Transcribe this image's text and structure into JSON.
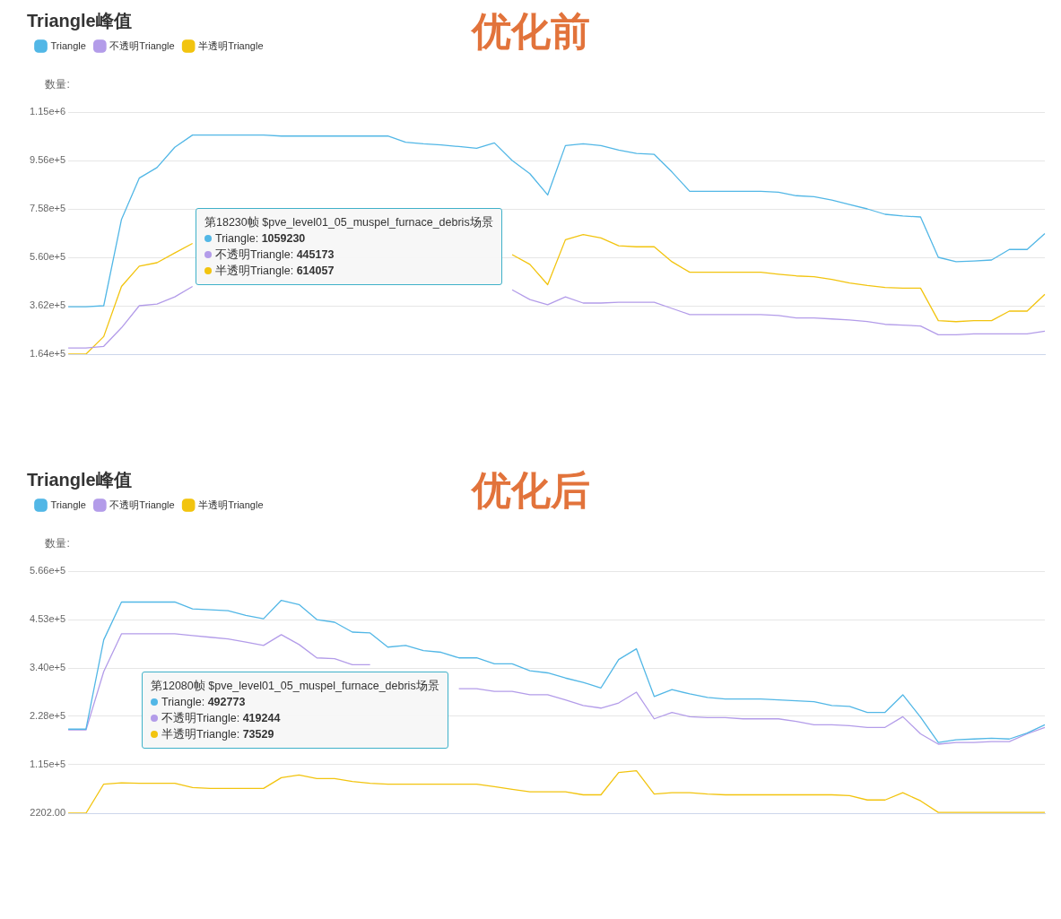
{
  "chart_data": [
    {
      "type": "line",
      "title": "Triangle峰值",
      "subtitle": "优化前",
      "ylabel": "数量:",
      "legend": "top left",
      "grid": "y",
      "marker": "none",
      "tick_labels": "y",
      "categories": [
        null,
        null,
        null,
        null,
        null,
        null,
        null,
        null,
        null,
        null,
        null,
        null,
        null,
        null,
        null,
        null,
        null,
        null,
        null,
        null,
        null,
        null,
        null,
        null,
        null,
        null,
        null,
        null,
        null,
        null,
        null,
        null,
        null,
        null,
        null,
        null,
        null,
        null,
        null,
        null,
        null,
        null,
        null,
        null,
        null,
        null,
        null,
        null,
        null,
        null,
        null,
        null,
        null,
        null,
        null,
        null
      ],
      "ylim": [
        164000,
        1154000
      ],
      "yticks": [
        {
          "value": 164000,
          "label": "1.64e+5"
        },
        {
          "value": 362000,
          "label": "3.62e+5"
        },
        {
          "value": 560000,
          "label": "5.60e+5"
        },
        {
          "value": 758000,
          "label": "7.58e+5"
        },
        {
          "value": 956000,
          "label": "9.56e+5"
        },
        {
          "value": 1154000,
          "label": "1.15e+6"
        }
      ],
      "series": [
        {
          "name": "Triangle",
          "color": "#52b7e6",
          "values": [
            358000,
            358000,
            362000,
            715000,
            884000,
            927000,
            1010000,
            1060000,
            1060000,
            1060000,
            1060000,
            1060000,
            1056000,
            1056000,
            1056000,
            1056000,
            1056000,
            1056000,
            1056000,
            1031000,
            1024000,
            1020000,
            1013000,
            1006000,
            1028000,
            956000,
            902000,
            815000,
            1017000,
            1024000,
            1017000,
            999000,
            985000,
            981000,
            909000,
            830000,
            830000,
            830000,
            830000,
            830000,
            826000,
            812000,
            808000,
            794000,
            776000,
            758000,
            736000,
            729000,
            725000,
            560000,
            542000,
            545000,
            549000,
            592000,
            592000,
            657000
          ]
        },
        {
          "name": "不透明Triangle",
          "color": "#b39ce9",
          "values": [
            189000,
            189000,
            196000,
            272000,
            362000,
            369000,
            398000,
            441000,
            null,
            null,
            null,
            null,
            null,
            null,
            null,
            null,
            null,
            null,
            null,
            null,
            null,
            null,
            null,
            null,
            null,
            427000,
            387000,
            366000,
            398000,
            373000,
            373000,
            376000,
            376000,
            376000,
            351000,
            326000,
            326000,
            326000,
            326000,
            326000,
            322000,
            312000,
            312000,
            308000,
            304000,
            297000,
            286000,
            283000,
            279000,
            243000,
            243000,
            247000,
            247000,
            247000,
            247000,
            258000
          ]
        },
        {
          "name": "半透明Triangle",
          "color": "#f2c40f",
          "values": [
            164000,
            164000,
            236000,
            441000,
            524000,
            538000,
            578000,
            617000,
            null,
            null,
            null,
            null,
            null,
            null,
            null,
            null,
            null,
            null,
            null,
            null,
            null,
            null,
            null,
            null,
            null,
            571000,
            531000,
            448000,
            632000,
            653000,
            639000,
            607000,
            603000,
            603000,
            542000,
            499000,
            499000,
            499000,
            499000,
            499000,
            491000,
            484000,
            481000,
            470000,
            455000,
            445000,
            437000,
            434000,
            434000,
            301000,
            297000,
            301000,
            301000,
            340000,
            340000,
            409000
          ]
        }
      ],
      "annotations": [
        "第18230帧 $pve_level01_05_muspel_furnace_debris场景",
        "Triangle: 1059230",
        "不透明Triangle: 445173",
        "半透明Triangle: 614057"
      ]
    },
    {
      "type": "line",
      "title": "Triangle峰值",
      "subtitle": "优化后",
      "ylabel": "数量:",
      "legend": "top left",
      "grid": "y",
      "marker": "none",
      "tick_labels": "y",
      "categories": [
        null,
        null,
        null,
        null,
        null,
        null,
        null,
        null,
        null,
        null,
        null,
        null,
        null,
        null,
        null,
        null,
        null,
        null,
        null,
        null,
        null,
        null,
        null,
        null,
        null,
        null,
        null,
        null,
        null,
        null,
        null,
        null,
        null,
        null,
        null,
        null,
        null,
        null,
        null,
        null,
        null,
        null,
        null,
        null,
        null,
        null,
        null,
        null,
        null,
        null,
        null,
        null,
        null,
        null,
        null,
        null
      ],
      "ylim": [
        2202,
        566000
      ],
      "yticks": [
        {
          "value": 2202,
          "label": "2202.00"
        },
        {
          "value": 115000,
          "label": "1.15e+5"
        },
        {
          "value": 228000,
          "label": "2.28e+5"
        },
        {
          "value": 340000,
          "label": "3.40e+5"
        },
        {
          "value": 453000,
          "label": "4.53e+5"
        },
        {
          "value": 566000,
          "label": "5.66e+5"
        }
      ],
      "series": [
        {
          "name": "Triangle",
          "color": "#52b7e6",
          "values": [
            198000,
            198000,
            406000,
            494000,
            494000,
            494000,
            494000,
            478000,
            476000,
            474000,
            463000,
            455000,
            498000,
            488000,
            453000,
            447000,
            424000,
            422000,
            389000,
            393000,
            381000,
            377000,
            364000,
            364000,
            350000,
            350000,
            334000,
            329000,
            317000,
            307000,
            294000,
            360000,
            385000,
            274000,
            290000,
            280000,
            272000,
            268000,
            268000,
            268000,
            266000,
            264000,
            262000,
            253000,
            251000,
            237000,
            237000,
            278000,
            226000,
            167000,
            173000,
            175000,
            177000,
            175000,
            189000,
            208000
          ]
        },
        {
          "name": "不透明Triangle",
          "color": "#b39ce9",
          "values": [
            196000,
            196000,
            332000,
            420000,
            420000,
            420000,
            420000,
            416000,
            412000,
            408000,
            401000,
            393000,
            418000,
            395000,
            364000,
            362000,
            348000,
            348000,
            null,
            null,
            null,
            null,
            292000,
            292000,
            286000,
            286000,
            278000,
            278000,
            266000,
            253000,
            247000,
            259000,
            284000,
            222000,
            237000,
            227000,
            225000,
            225000,
            222000,
            222000,
            222000,
            216000,
            208000,
            208000,
            206000,
            202000,
            202000,
            227000,
            187000,
            163000,
            167000,
            167000,
            169000,
            169000,
            187000,
            202000
          ]
        },
        {
          "name": "半透明Triangle",
          "color": "#f2c40f",
          "values": [
            2202,
            2202,
            70000,
            73000,
            72000,
            72000,
            72000,
            62000,
            60000,
            60000,
            60000,
            60000,
            85000,
            91000,
            83000,
            83000,
            76000,
            72000,
            70000,
            70000,
            70000,
            70000,
            70000,
            70000,
            64000,
            58000,
            52000,
            52000,
            52000,
            45000,
            45000,
            97000,
            101000,
            47000,
            50000,
            50000,
            47000,
            45000,
            45000,
            45000,
            45000,
            45000,
            45000,
            45000,
            43000,
            33000,
            33000,
            50000,
            31000,
            4000,
            4000,
            4000,
            4000,
            4000,
            4000,
            4000
          ]
        }
      ],
      "annotations": [
        "第12080帧 $pve_level01_05_muspel_furnace_debris场景",
        "Triangle: 492773",
        "不透明Triangle: 419244",
        "半透明Triangle: 73529"
      ]
    }
  ]
}
